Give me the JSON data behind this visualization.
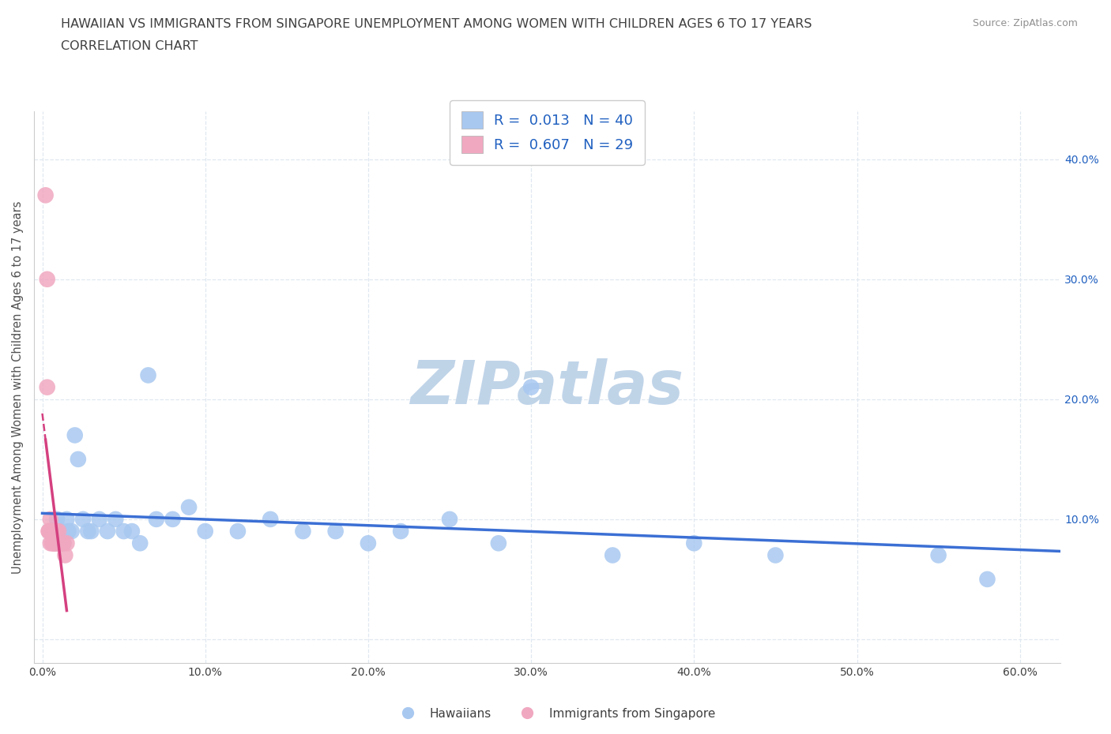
{
  "title_line1": "HAWAIIAN VS IMMIGRANTS FROM SINGAPORE UNEMPLOYMENT AMONG WOMEN WITH CHILDREN AGES 6 TO 17 YEARS",
  "title_line2": "CORRELATION CHART",
  "source_text": "Source: ZipAtlas.com",
  "ylabel": "Unemployment Among Women with Children Ages 6 to 17 years",
  "xlim": [
    -0.005,
    0.625
  ],
  "ylim": [
    -0.02,
    0.44
  ],
  "xticks": [
    0.0,
    0.1,
    0.2,
    0.3,
    0.4,
    0.5,
    0.6
  ],
  "xtick_labels": [
    "0.0%",
    "10.0%",
    "20.0%",
    "30.0%",
    "40.0%",
    "50.0%",
    "60.0%"
  ],
  "yticks": [
    0.0,
    0.1,
    0.2,
    0.3,
    0.4
  ],
  "right_ytick_labels": [
    "10.0%",
    "20.0%",
    "30.0%",
    "40.0%"
  ],
  "right_yticks": [
    0.1,
    0.2,
    0.3,
    0.4
  ],
  "hawaiian_color": "#a8c8f0",
  "singapore_color": "#f0a8c0",
  "hawaiian_trend_color": "#3b6fd4",
  "singapore_trend_color": "#d44080",
  "grid_color": "#e0e8f0",
  "R_hawaiian": 0.013,
  "N_hawaiian": 40,
  "R_singapore": 0.607,
  "N_singapore": 29,
  "hawaiian_x": [
    0.005,
    0.007,
    0.008,
    0.009,
    0.01,
    0.012,
    0.013,
    0.015,
    0.016,
    0.018,
    0.02,
    0.022,
    0.025,
    0.028,
    0.03,
    0.035,
    0.04,
    0.045,
    0.05,
    0.055,
    0.06,
    0.065,
    0.07,
    0.08,
    0.09,
    0.1,
    0.12,
    0.14,
    0.16,
    0.18,
    0.2,
    0.22,
    0.25,
    0.28,
    0.3,
    0.35,
    0.4,
    0.45,
    0.55,
    0.58
  ],
  "hawaiian_y": [
    0.09,
    0.09,
    0.08,
    0.1,
    0.09,
    0.09,
    0.08,
    0.1,
    0.09,
    0.09,
    0.17,
    0.15,
    0.1,
    0.09,
    0.09,
    0.1,
    0.09,
    0.1,
    0.09,
    0.09,
    0.08,
    0.22,
    0.1,
    0.1,
    0.11,
    0.09,
    0.09,
    0.1,
    0.09,
    0.09,
    0.08,
    0.09,
    0.1,
    0.08,
    0.21,
    0.07,
    0.08,
    0.07,
    0.07,
    0.05
  ],
  "singapore_x": [
    0.002,
    0.003,
    0.003,
    0.004,
    0.004,
    0.005,
    0.005,
    0.005,
    0.005,
    0.006,
    0.006,
    0.006,
    0.007,
    0.007,
    0.007,
    0.007,
    0.007,
    0.008,
    0.008,
    0.009,
    0.009,
    0.009,
    0.01,
    0.01,
    0.011,
    0.012,
    0.013,
    0.014,
    0.015
  ],
  "singapore_y": [
    0.37,
    0.3,
    0.21,
    0.09,
    0.09,
    0.1,
    0.09,
    0.09,
    0.08,
    0.09,
    0.09,
    0.08,
    0.09,
    0.09,
    0.08,
    0.08,
    0.08,
    0.09,
    0.08,
    0.09,
    0.08,
    0.08,
    0.09,
    0.08,
    0.08,
    0.08,
    0.08,
    0.07,
    0.08
  ],
  "watermark_text": "ZIPatlas",
  "watermark_color": "#c0d4e8",
  "legend_label_hawaiian": "Hawaiians",
  "legend_label_singapore": "Immigrants from Singapore",
  "annotation_color": "#2060c0",
  "tick_color": "#404040"
}
